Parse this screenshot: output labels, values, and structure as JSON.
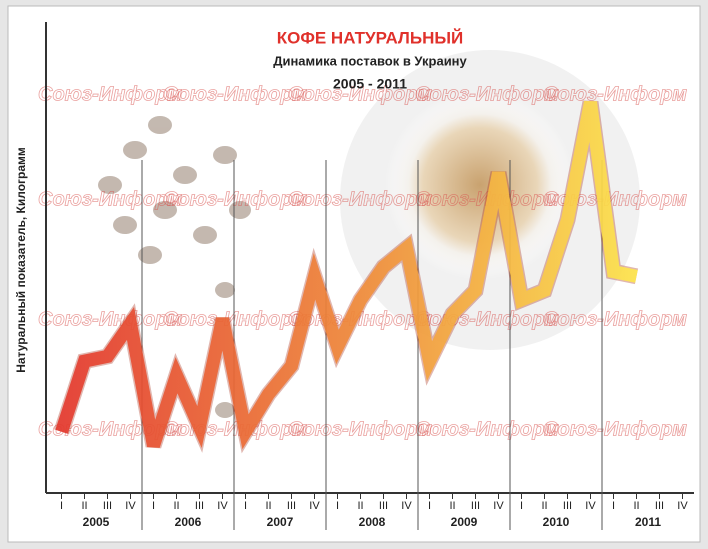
{
  "chart_data": {
    "type": "line",
    "title": "КОФЕ НАТУРАЛЬНЫЙ",
    "subtitle": "Динамика поставок в Украину",
    "period": "2005 - 2011",
    "y_label": "Натуральный показатель, Килограмм",
    "watermark": "Союз-Информ",
    "categories": [
      "I",
      "II",
      "III",
      "IV",
      "I",
      "II",
      "III",
      "IV",
      "I",
      "II",
      "III",
      "IV",
      "I",
      "II",
      "III",
      "IV",
      "I",
      "II",
      "III",
      "IV",
      "I",
      "II",
      "III",
      "IV",
      "I",
      "II",
      "III",
      "IV"
    ],
    "years": [
      "2005",
      "2006",
      "2007",
      "2008",
      "2009",
      "2010",
      "2011"
    ],
    "values": [
      13,
      28,
      29,
      36,
      10,
      25,
      14,
      37,
      13,
      21,
      27,
      46,
      31,
      41,
      48,
      52,
      28,
      38,
      43,
      68,
      41,
      43,
      58,
      83,
      47,
      46,
      null,
      null
    ],
    "colors": [
      "#e5392e",
      "#f0893a",
      "#ffe94c"
    ],
    "ylim": [
      0,
      100
    ]
  }
}
